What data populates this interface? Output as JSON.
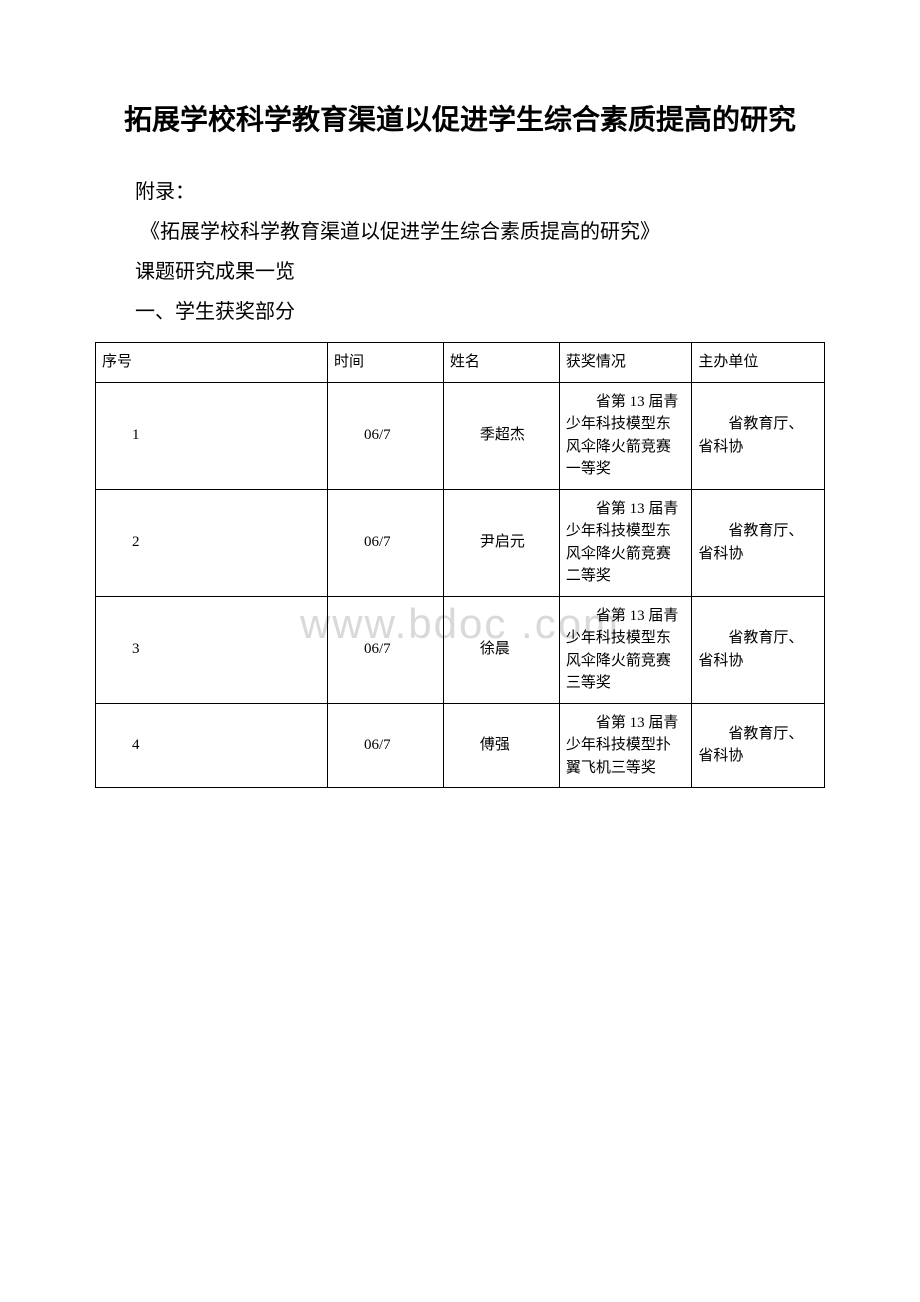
{
  "title": "拓展学校科学教育渠道以促进学生综合素质提高的研究",
  "appendix": "附录：",
  "research_name": "《拓展学校科学教育渠道以促进学生综合素质提高的研究》",
  "research_subtitle": "课题研究成果一览",
  "section_title": "一、学生获奖部分",
  "watermark": "www.bdoc .com",
  "table": {
    "headers": {
      "seq": "序号",
      "time": "时间",
      "name": "姓名",
      "award": "获奖情况",
      "org": "主办单位"
    },
    "rows": [
      {
        "seq": "1",
        "time": "06/7",
        "name": "季超杰",
        "award": "省第 13 届青少年科技模型东风伞降火箭竞赛一等奖",
        "org": "省教育厅、省科协"
      },
      {
        "seq": "2",
        "time": "06/7",
        "name": "尹启元",
        "award": "省第 13 届青少年科技模型东风伞降火箭竞赛二等奖",
        "org": "省教育厅、省科协"
      },
      {
        "seq": "3",
        "time": "06/7",
        "name": "徐晨",
        "award": "省第 13 届青少年科技模型东风伞降火箭竞赛三等奖",
        "org": "省教育厅、省科协"
      },
      {
        "seq": "4",
        "time": "06/7",
        "name": "傅强",
        "award": "省第 13 届青少年科技模型扑翼飞机三等奖",
        "org": "省教育厅、省科协"
      }
    ]
  },
  "colors": {
    "background": "#ffffff",
    "text": "#000000",
    "border": "#000000",
    "watermark": "#d9d9d9"
  },
  "typography": {
    "title_fontsize": 28,
    "body_fontsize": 20,
    "table_fontsize": 15,
    "font_family": "SimSun"
  }
}
